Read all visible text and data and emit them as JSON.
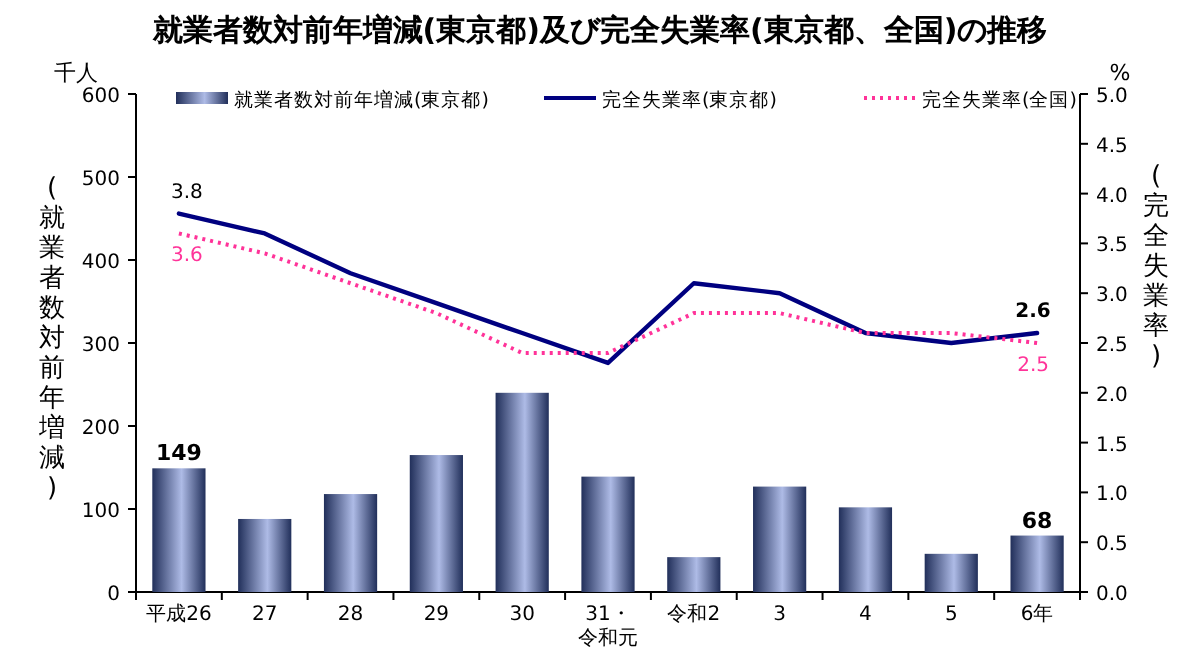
{
  "chart_data": {
    "type": "bar",
    "title": "就業者数対前年増減(東京都)及び完全失業率(東京都、全国)の推移",
    "ylabel": "(就業者数対前年増減)",
    "y2label": "(完全失業率)",
    "annotations": [
      "千人",
      "%"
    ],
    "categories": [
      "平成26",
      "27",
      "28",
      "29",
      "30",
      "31・令和元",
      "令和2",
      "3",
      "4",
      "5",
      "6年"
    ],
    "series": [
      {
        "name": "就業者数対前年増減(東京都)",
        "color": "#4a68c8",
        "values": [
          149,
          88,
          118,
          165,
          240,
          139,
          42,
          127,
          102,
          46,
          68
        ],
        "value_labels": [
          "149",
          null,
          null,
          null,
          null,
          null,
          null,
          null,
          null,
          null,
          "68"
        ]
      },
      {
        "name": "完全失業率(東京都)",
        "type": "line",
        "axis": "y2",
        "color": "#000080",
        "line_style": "solid",
        "values": [
          3.8,
          3.6,
          3.2,
          2.9,
          2.6,
          2.3,
          3.1,
          3.0,
          2.6,
          2.5,
          2.6
        ],
        "value_labels": [
          "3.8",
          null,
          null,
          null,
          null,
          null,
          null,
          null,
          null,
          null,
          "2.6"
        ]
      },
      {
        "name": "完全失業率(全国)",
        "type": "line",
        "axis": "y2",
        "color": "#ff3399",
        "line_style": "dotted",
        "values": [
          3.6,
          3.4,
          3.1,
          2.8,
          2.4,
          2.4,
          2.8,
          2.8,
          2.6,
          2.6,
          2.5
        ],
        "value_labels": [
          "3.6",
          null,
          null,
          null,
          null,
          null,
          null,
          null,
          null,
          null,
          "2.5"
        ]
      }
    ],
    "ylim": [
      0,
      600
    ],
    "yticks": [
      0,
      100,
      200,
      300,
      400,
      500,
      600
    ],
    "y2lim": [
      0,
      5.0
    ],
    "y2ticks": [
      {
        "value": 0,
        "label": "0.0"
      },
      {
        "value": 0.5,
        "label": "0.5"
      },
      {
        "value": 1,
        "label": "1.0"
      },
      {
        "value": 1.5,
        "label": "1.5"
      },
      {
        "value": 2,
        "label": "2.0"
      },
      {
        "value": 2.5,
        "label": "2.5"
      },
      {
        "value": 3,
        "label": "3.0"
      },
      {
        "value": 3.5,
        "label": "3.5"
      },
      {
        "value": 4,
        "label": "4.0"
      },
      {
        "value": 4.5,
        "label": "4.5"
      },
      {
        "value": 5,
        "label": "5.0"
      }
    ],
    "legend": "top",
    "grid": false
  }
}
